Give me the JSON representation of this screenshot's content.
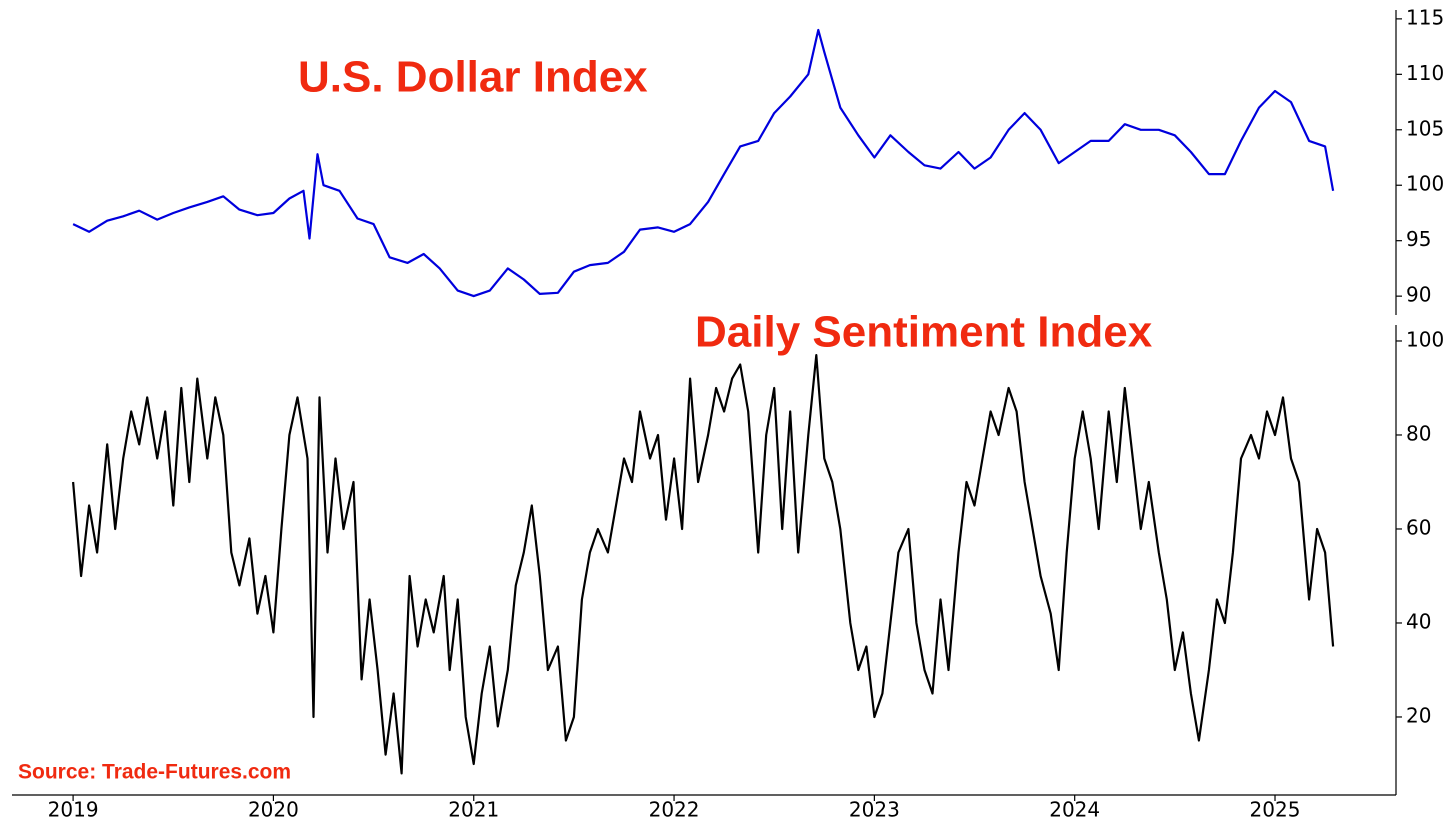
{
  "chart_data": [
    {
      "type": "line",
      "title": "U.S. Dollar Index",
      "color": "#0000dd",
      "x": [
        2019.0,
        2019.08,
        2019.17,
        2019.25,
        2019.33,
        2019.42,
        2019.5,
        2019.58,
        2019.67,
        2019.75,
        2019.83,
        2019.92,
        2020.0,
        2020.08,
        2020.15,
        2020.18,
        2020.22,
        2020.25,
        2020.33,
        2020.42,
        2020.5,
        2020.58,
        2020.67,
        2020.75,
        2020.83,
        2020.92,
        2021.0,
        2021.08,
        2021.17,
        2021.25,
        2021.33,
        2021.42,
        2021.5,
        2021.58,
        2021.67,
        2021.75,
        2021.83,
        2021.92,
        2022.0,
        2022.08,
        2022.17,
        2022.25,
        2022.33,
        2022.42,
        2022.5,
        2022.58,
        2022.67,
        2022.72,
        2022.75,
        2022.83,
        2022.92,
        2023.0,
        2023.08,
        2023.17,
        2023.25,
        2023.33,
        2023.42,
        2023.5,
        2023.58,
        2023.67,
        2023.75,
        2023.83,
        2023.92,
        2024.0,
        2024.08,
        2024.17,
        2024.25,
        2024.33,
        2024.42,
        2024.5,
        2024.58,
        2024.67,
        2024.75,
        2024.83,
        2024.92,
        2025.0,
        2025.08,
        2025.17,
        2025.25,
        2025.29
      ],
      "values": [
        96.5,
        95.8,
        96.8,
        97.2,
        97.7,
        96.9,
        97.5,
        98,
        98.5,
        99,
        97.8,
        97.3,
        97.5,
        98.8,
        99.5,
        95.2,
        102.8,
        100,
        99.5,
        97,
        96.5,
        93.5,
        93,
        93.8,
        92.5,
        90.5,
        90,
        90.5,
        92.5,
        91.5,
        90.2,
        90.3,
        92.2,
        92.8,
        93,
        94,
        96,
        96.2,
        95.8,
        96.5,
        98.5,
        101,
        103.5,
        104,
        106.5,
        108,
        110,
        114,
        112,
        107,
        104.5,
        102.5,
        104.5,
        103,
        101.8,
        101.5,
        103,
        101.5,
        102.5,
        105,
        106.5,
        105,
        102,
        103,
        104,
        104,
        105.5,
        105,
        105,
        104.5,
        103,
        101,
        101,
        104,
        107,
        108.5,
        107.5,
        104,
        103.5,
        99.5
      ],
      "xlim": [
        2018.695,
        2025.604
      ],
      "ylim": [
        88.3,
        115.8
      ],
      "yticks": [
        90,
        95,
        100,
        105,
        110,
        115
      ]
    },
    {
      "type": "line",
      "title": "Daily Sentiment Index",
      "color": "#000000",
      "annotation": "Source: Trade-Futures.com",
      "x": [
        2019.0,
        2019.04,
        2019.08,
        2019.12,
        2019.17,
        2019.21,
        2019.25,
        2019.29,
        2019.33,
        2019.37,
        2019.42,
        2019.46,
        2019.5,
        2019.54,
        2019.58,
        2019.62,
        2019.67,
        2019.71,
        2019.75,
        2019.79,
        2019.83,
        2019.88,
        2019.92,
        2019.96,
        2020.0,
        2020.04,
        2020.08,
        2020.12,
        2020.17,
        2020.2,
        2020.23,
        2020.27,
        2020.31,
        2020.35,
        2020.4,
        2020.44,
        2020.48,
        2020.52,
        2020.56,
        2020.6,
        2020.64,
        2020.68,
        2020.72,
        2020.76,
        2020.8,
        2020.85,
        2020.88,
        2020.92,
        2020.96,
        2021.0,
        2021.04,
        2021.08,
        2021.12,
        2021.17,
        2021.21,
        2021.25,
        2021.29,
        2021.33,
        2021.37,
        2021.42,
        2021.46,
        2021.5,
        2021.54,
        2021.58,
        2021.62,
        2021.67,
        2021.71,
        2021.75,
        2021.79,
        2021.83,
        2021.88,
        2021.92,
        2021.96,
        2022.0,
        2022.04,
        2022.08,
        2022.12,
        2022.17,
        2022.21,
        2022.25,
        2022.29,
        2022.33,
        2022.37,
        2022.42,
        2022.46,
        2022.5,
        2022.54,
        2022.58,
        2022.62,
        2022.67,
        2022.71,
        2022.75,
        2022.79,
        2022.83,
        2022.88,
        2022.92,
        2022.96,
        2023.0,
        2023.04,
        2023.08,
        2023.12,
        2023.17,
        2023.21,
        2023.25,
        2023.29,
        2023.33,
        2023.37,
        2023.42,
        2023.46,
        2023.5,
        2023.54,
        2023.58,
        2023.62,
        2023.67,
        2023.71,
        2023.75,
        2023.79,
        2023.83,
        2023.88,
        2023.92,
        2023.96,
        2024.0,
        2024.04,
        2024.08,
        2024.12,
        2024.17,
        2024.21,
        2024.25,
        2024.29,
        2024.33,
        2024.37,
        2024.42,
        2024.46,
        2024.5,
        2024.54,
        2024.58,
        2024.62,
        2024.67,
        2024.71,
        2024.75,
        2024.79,
        2024.83,
        2024.88,
        2024.92,
        2024.96,
        2025.0,
        2025.04,
        2025.08,
        2025.12,
        2025.17,
        2025.21,
        2025.25,
        2025.29
      ],
      "values": [
        70,
        50,
        65,
        55,
        78,
        60,
        75,
        85,
        78,
        88,
        75,
        85,
        65,
        90,
        70,
        92,
        75,
        88,
        80,
        55,
        48,
        58,
        42,
        50,
        38,
        60,
        80,
        88,
        75,
        20,
        88,
        55,
        75,
        60,
        70,
        28,
        45,
        30,
        12,
        25,
        8,
        50,
        35,
        45,
        38,
        50,
        30,
        45,
        20,
        10,
        25,
        35,
        18,
        30,
        48,
        55,
        65,
        50,
        30,
        35,
        15,
        20,
        45,
        55,
        60,
        55,
        65,
        75,
        70,
        85,
        75,
        80,
        62,
        75,
        60,
        92,
        70,
        80,
        90,
        85,
        92,
        95,
        85,
        55,
        80,
        90,
        60,
        85,
        55,
        80,
        97,
        75,
        70,
        60,
        40,
        30,
        35,
        20,
        25,
        40,
        55,
        60,
        40,
        30,
        25,
        45,
        30,
        55,
        70,
        65,
        75,
        85,
        80,
        90,
        85,
        70,
        60,
        50,
        42,
        30,
        55,
        75,
        85,
        75,
        60,
        85,
        70,
        90,
        75,
        60,
        70,
        55,
        45,
        30,
        38,
        25,
        15,
        30,
        45,
        40,
        55,
        75,
        80,
        75,
        85,
        80,
        88,
        75,
        70,
        45,
        60,
        55,
        35
      ],
      "xlim": [
        2018.695,
        2025.604
      ],
      "ylim": [
        3.4,
        103.4
      ],
      "yticks": [
        20,
        40,
        60,
        80,
        100
      ],
      "xticks": [
        2019,
        2020,
        2021,
        2022,
        2023,
        2024,
        2025
      ]
    }
  ]
}
